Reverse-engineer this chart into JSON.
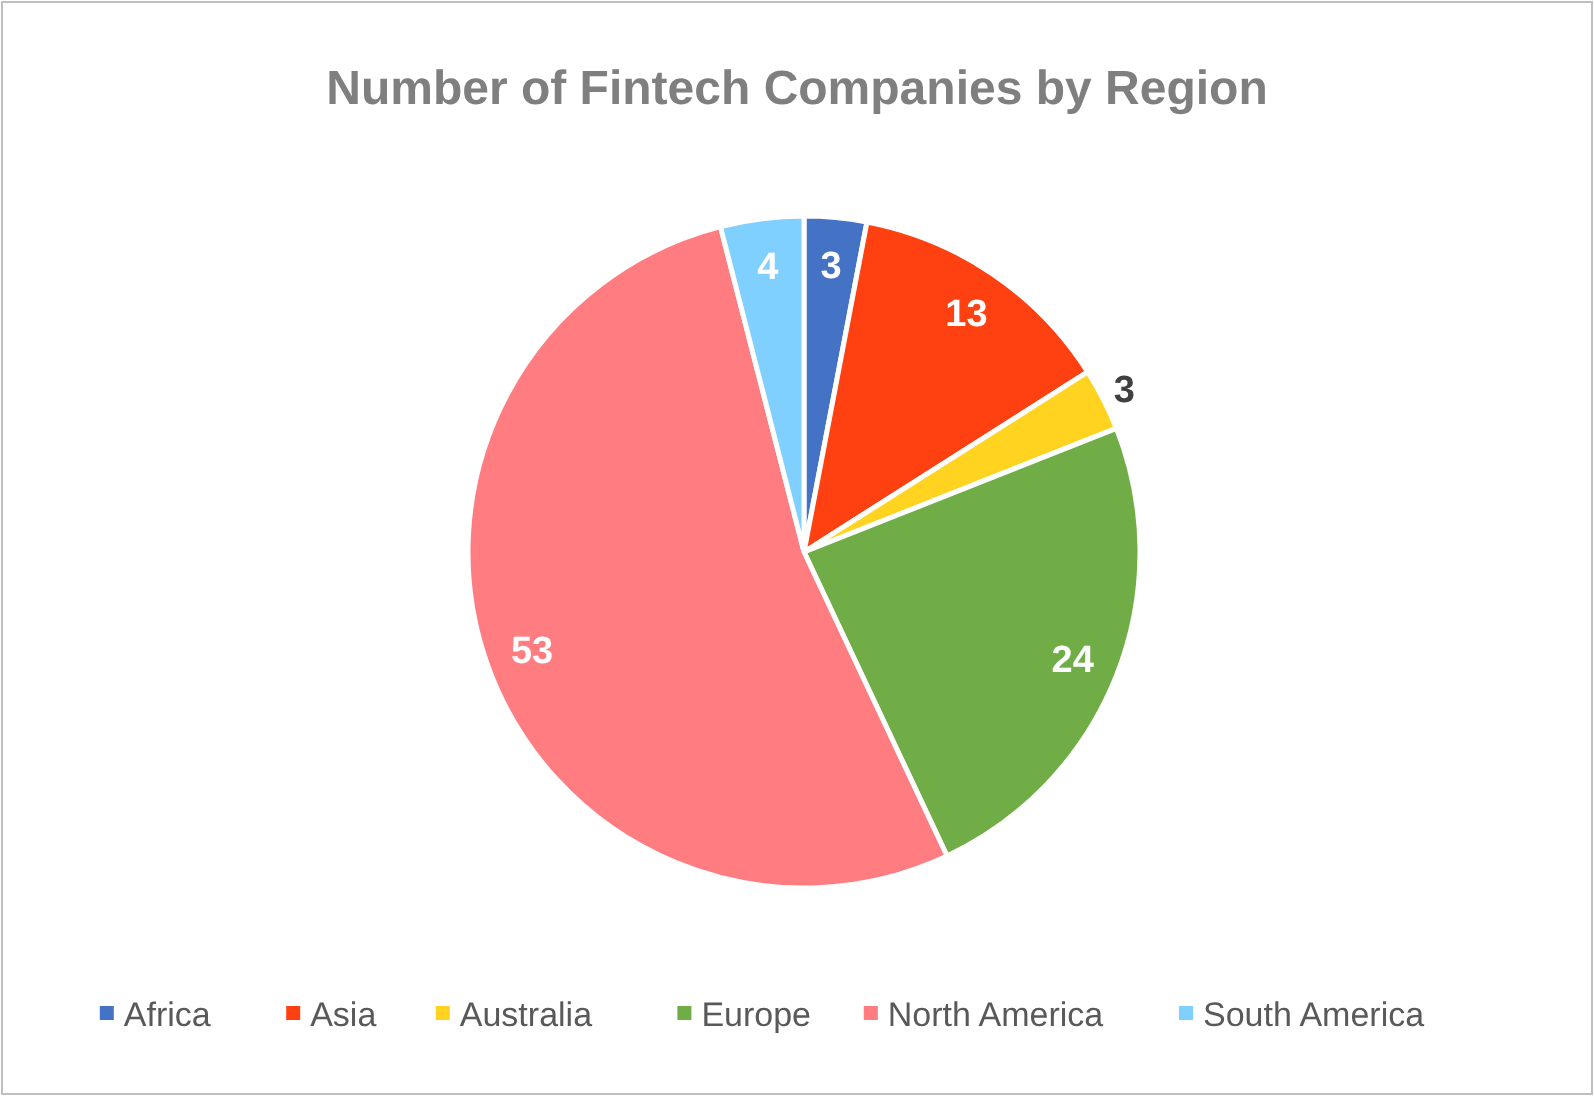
{
  "chart_data": {
    "type": "pie",
    "title": "Number of Fintech Companies by Region",
    "categories": [
      "Africa",
      "Asia",
      "Australia",
      "Europe",
      "North America",
      "South America"
    ],
    "values": [
      3,
      13,
      3,
      24,
      53,
      4
    ],
    "colors": [
      "#4472c4",
      "#ff4010",
      "#ffd320",
      "#70ad47",
      "#ff7c80",
      "#7fcfff"
    ],
    "data_labels": true,
    "legend": "bottom"
  }
}
